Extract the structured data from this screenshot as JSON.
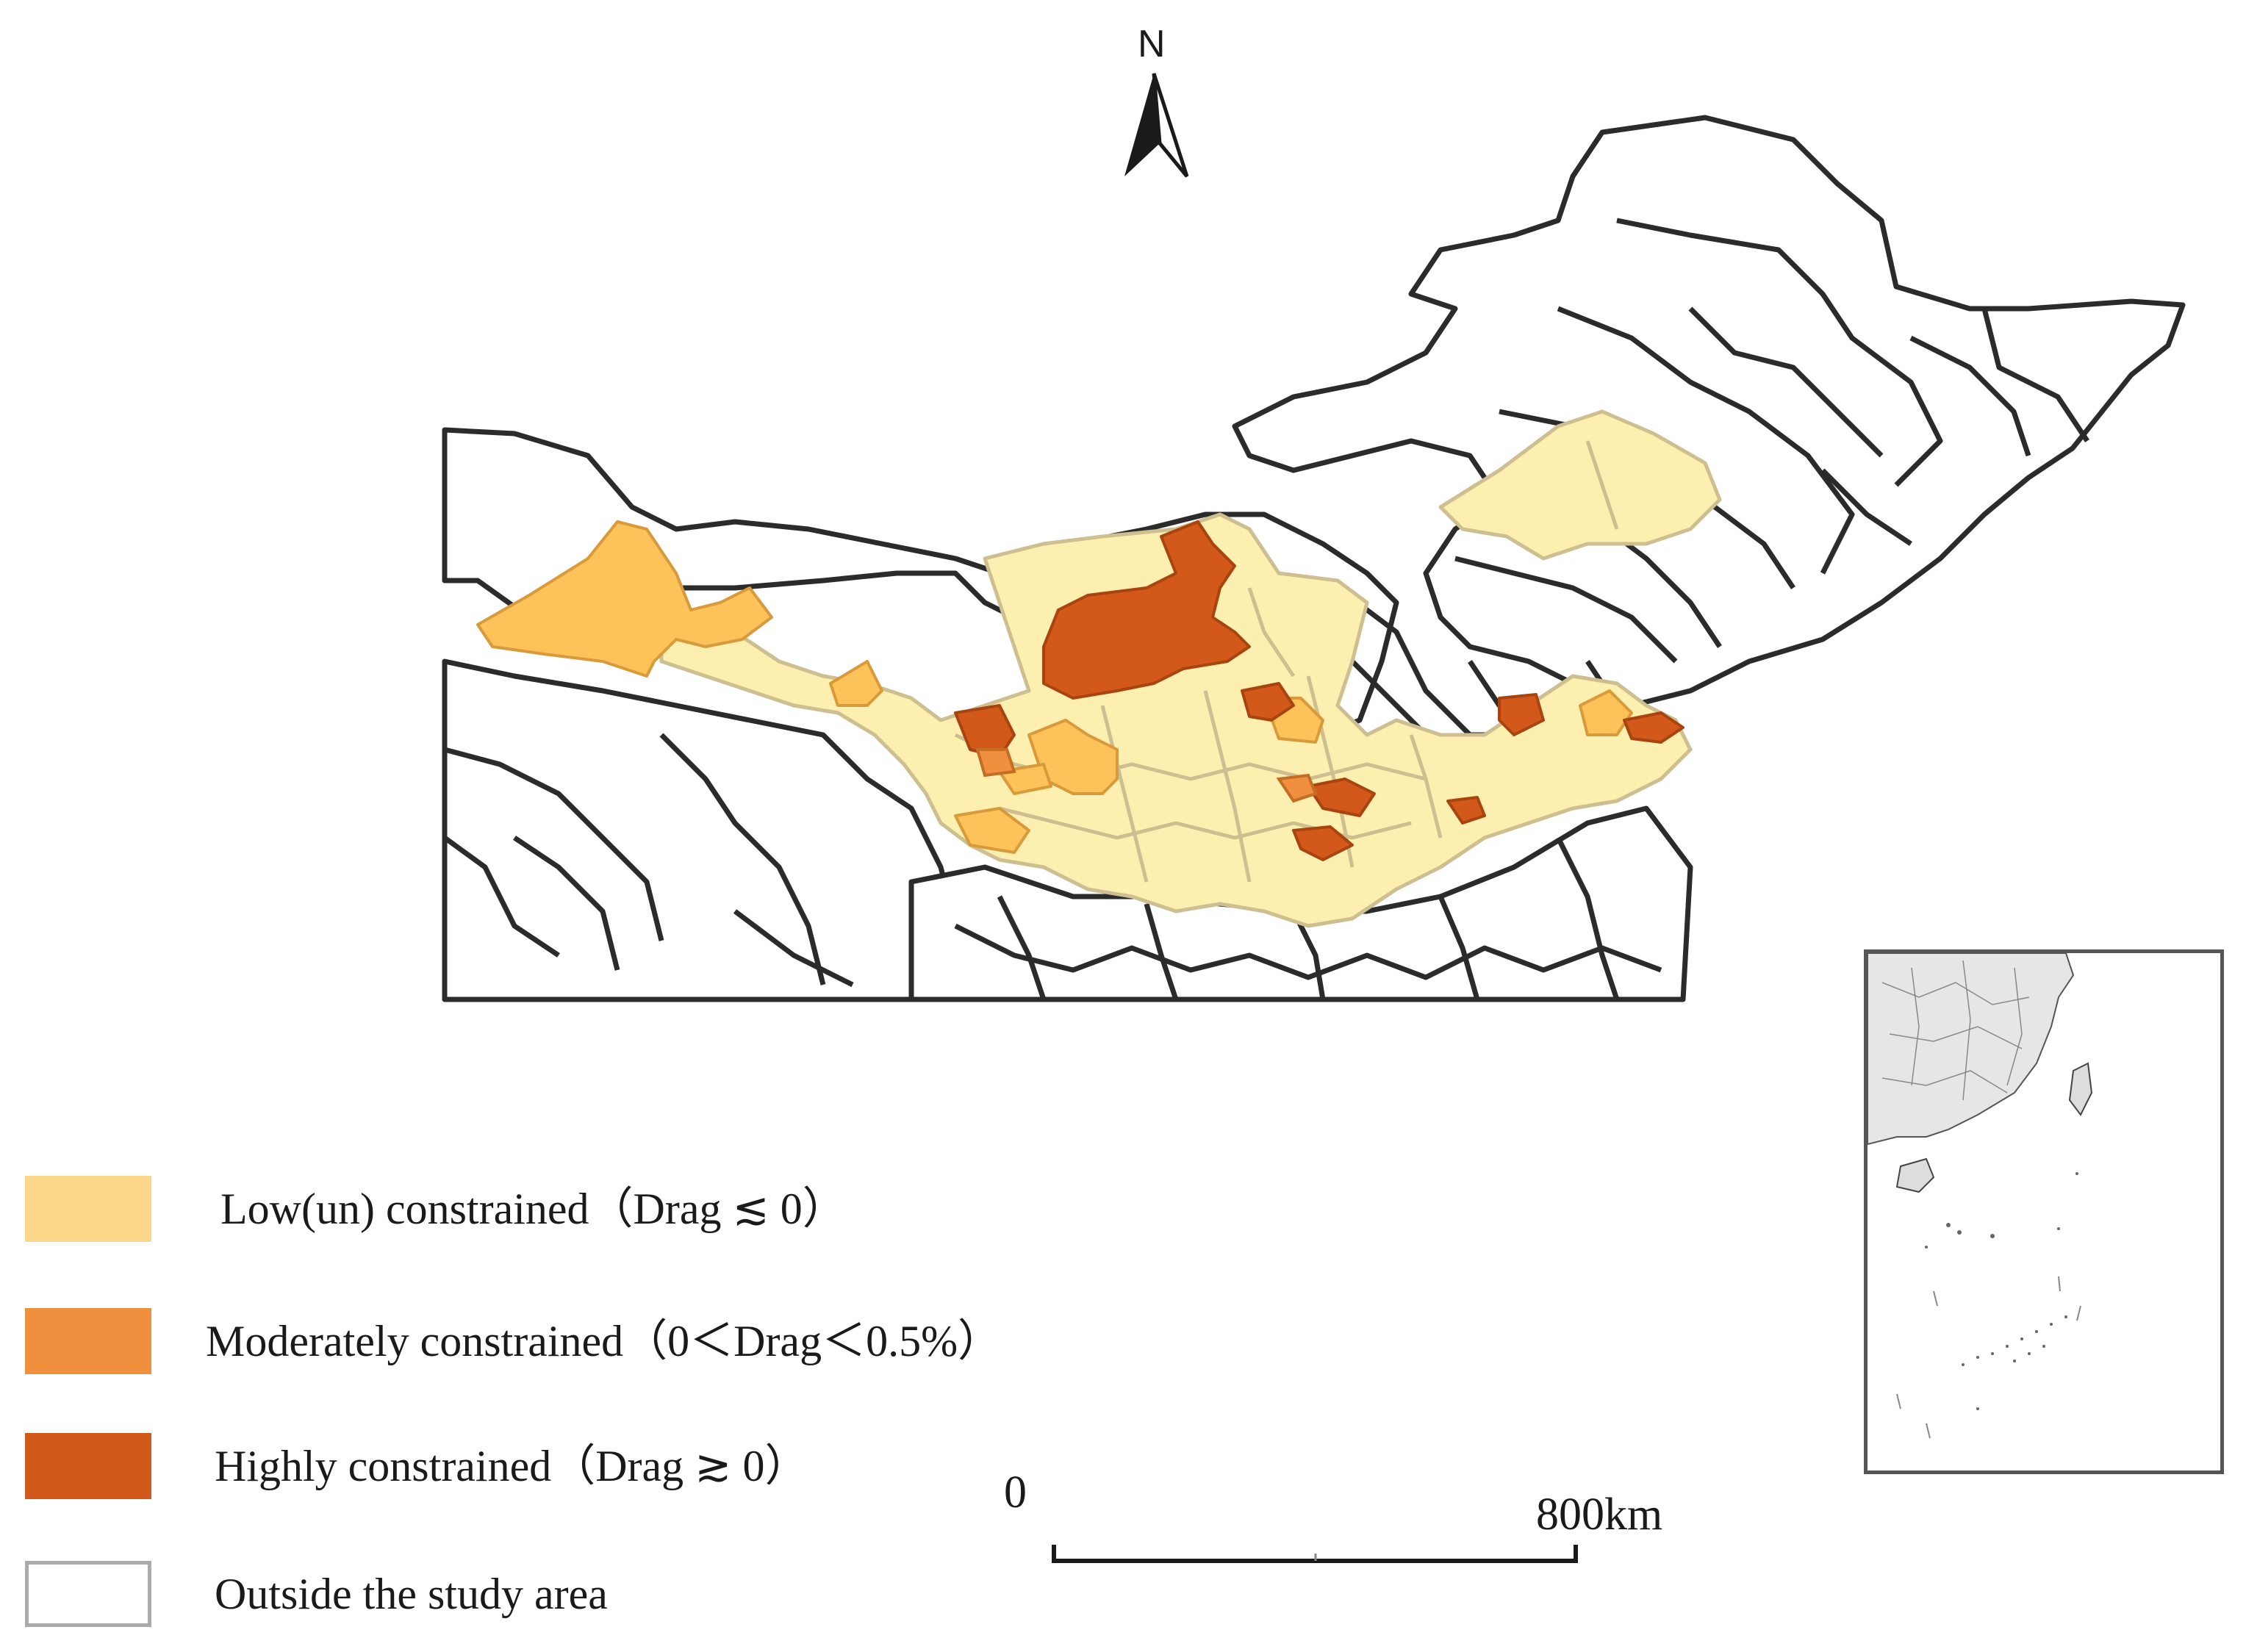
{
  "map": {
    "north_label": "N",
    "colors": {
      "low": "#FDEFB0",
      "low_legend": "#FDD88A",
      "light_orange": "#FDC35A",
      "moderate": "#F08F3E",
      "high": "#D2591A",
      "boundary": "#2b2b2b",
      "study_boundary": "#cdbf8f",
      "outside": "#ffffff"
    },
    "legend": [
      {
        "label": "Low(un) constrained（Drag ≲ 0）",
        "color": "#FDD88A"
      },
      {
        "label": "Moderately constrained（0＜Drag＜0.5%）",
        "color": "#F08F3E"
      },
      {
        "label": "Highly constrained（Drag ≳ 0）",
        "color": "#D2591A"
      },
      {
        "label": "Outside the study area",
        "color": "#ffffff"
      }
    ],
    "scale": {
      "start": "0",
      "end": "800km"
    },
    "inset": {
      "description_icon": "south-china-sea-inset"
    }
  }
}
